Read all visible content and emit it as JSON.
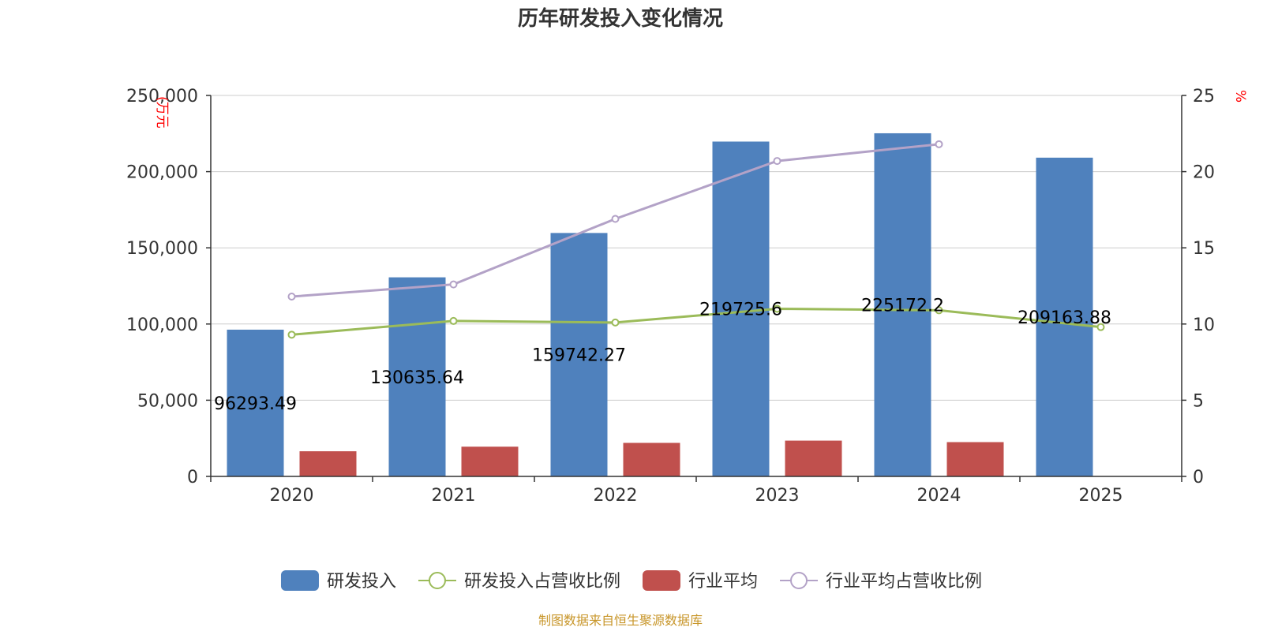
{
  "chart_data": {
    "type": "bar",
    "title": "历年研发投入变化情况",
    "categories": [
      "2020",
      "2021",
      "2022",
      "2023",
      "2024",
      "2025"
    ],
    "y_left": {
      "unit": "(万元",
      "ylim": [
        0,
        250000
      ],
      "ticks": [
        "0",
        "50,000",
        "100,000",
        "150,000",
        "200,000",
        "250,000"
      ],
      "tick_values": [
        0,
        50000,
        100000,
        150000,
        200000,
        250000
      ]
    },
    "y_right": {
      "unit": "%",
      "ylim": [
        0,
        25
      ],
      "ticks": [
        "0",
        "5",
        "10",
        "15",
        "20",
        "25"
      ],
      "tick_values": [
        0,
        5,
        10,
        15,
        20,
        25
      ]
    },
    "series": [
      {
        "name": "研发投入",
        "kind": "bar",
        "axis": "left",
        "color": "#4f81bd",
        "values": [
          96293.49,
          130635.64,
          159742.27,
          219725.6,
          225172.2,
          209163.88
        ],
        "labels": [
          "96293.49",
          "130635.64",
          "159742.27",
          "219725.6",
          "225172.2",
          "209163.88"
        ]
      },
      {
        "name": "研发投入占营收比例",
        "kind": "line",
        "axis": "right",
        "color": "#9bbb59",
        "values": [
          9.3,
          10.2,
          10.1,
          11.0,
          10.9,
          9.8
        ]
      },
      {
        "name": "行业平均",
        "kind": "bar",
        "axis": "left",
        "color": "#c0504d",
        "values": [
          16500,
          19500,
          22000,
          23500,
          22500,
          null
        ]
      },
      {
        "name": "行业平均占营收比例",
        "kind": "line",
        "axis": "right",
        "color": "#b3a2c7",
        "values": [
          11.8,
          12.6,
          16.9,
          20.7,
          21.8,
          null
        ]
      }
    ],
    "grid": true,
    "legend_position": "bottom"
  },
  "source": "制图数据来自恒生聚源数据库"
}
